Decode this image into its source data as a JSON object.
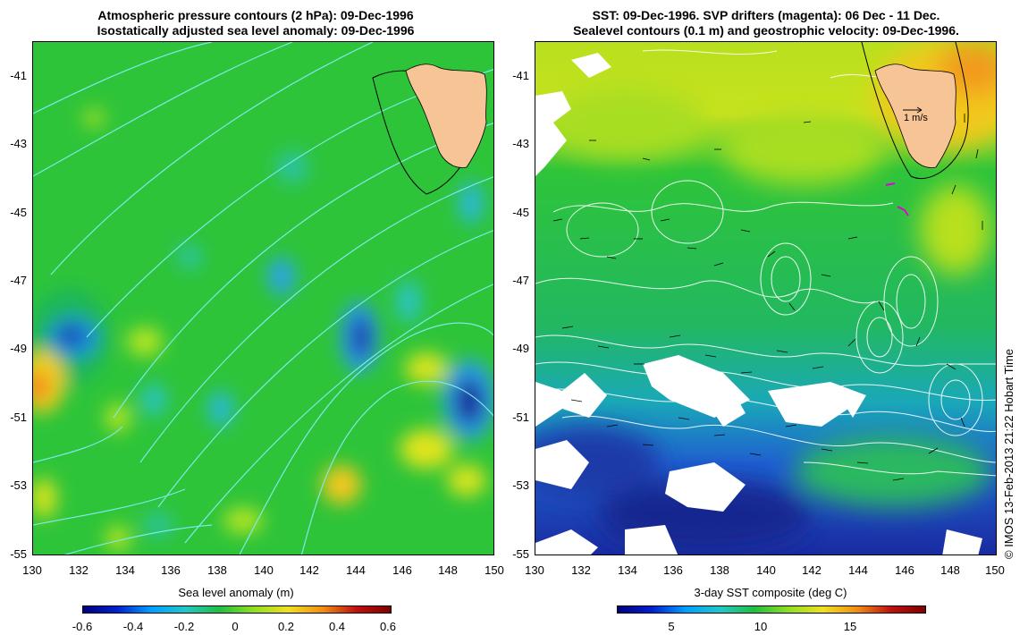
{
  "left": {
    "title_line1": "Atmospheric pressure contours (2 hPa): 09-Dec-1996",
    "title_line2": "Isostatically adjusted sea level anomaly: 09-Dec-1996",
    "colorbar": {
      "label": "Sea level anomaly (m)",
      "ticks": [
        "-0.6",
        "-0.4",
        "-0.2",
        "0",
        "0.2",
        "0.4",
        "0.6"
      ],
      "range": [
        -0.6,
        0.6
      ]
    }
  },
  "right": {
    "title_line1": "SST: 09-Dec-1996. SVP drifters (magenta): 06 Dec - 11 Dec.",
    "title_line2": "Sealevel contours (0.1 m) and geostrophic velocity: 09-Dec-1996.",
    "velocity_scale": "1 m/s",
    "colorbar": {
      "label": "3-day SST composite (deg C)",
      "ticks": [
        "5",
        "10",
        "15"
      ],
      "range": [
        2,
        19
      ]
    }
  },
  "axes": {
    "lat_ticks": [
      "-41",
      "-43",
      "-45",
      "-47",
      "-49",
      "-51",
      "-53",
      "-55"
    ],
    "lon_ticks": [
      "130",
      "132",
      "134",
      "136",
      "138",
      "140",
      "142",
      "144",
      "146",
      "148",
      "150"
    ],
    "lon_range": [
      130,
      150
    ],
    "lat_range": [
      -55,
      -40.3
    ]
  },
  "credit": "© IMOS 13-Feb-2013 21:22 Hobart Time",
  "colors": {
    "land": "#f7c496",
    "sla_background": "#2ec43a",
    "contour_cyan": "#7fe8e8",
    "sst_cold": "#1f3fb0",
    "sst_warm": "#f2e21a",
    "drifter": "#e000e0"
  }
}
